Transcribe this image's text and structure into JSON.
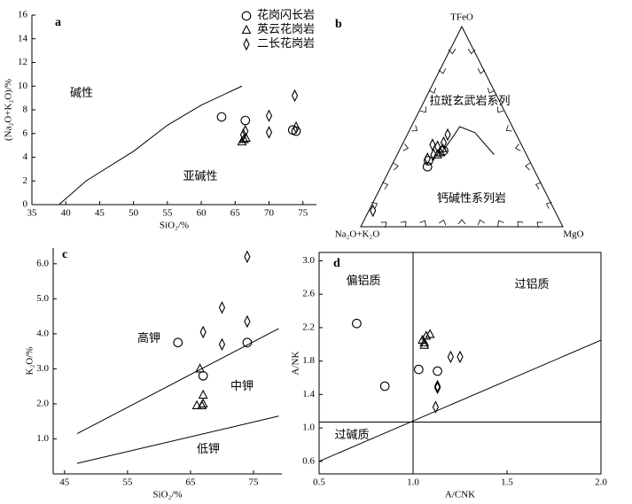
{
  "chart_data": [
    {
      "type": "scatter",
      "label": "a",
      "xlabel": "SiO₂/%",
      "ylabel": "(Na₂O+K₂O)/%",
      "xlim": [
        35,
        77
      ],
      "ylim": [
        0,
        16
      ],
      "xticks": [
        35,
        40,
        45,
        50,
        55,
        60,
        65,
        70,
        75
      ],
      "yticks": [
        0,
        2,
        4,
        6,
        8,
        10,
        12,
        14,
        16
      ],
      "legend": "upper right",
      "series": [
        {
          "name": "花岗闪长岩",
          "marker": "circle",
          "x": [
            63,
            66.5,
            73.5,
            74
          ],
          "y": [
            7.4,
            7.1,
            6.3,
            6.2
          ]
        },
        {
          "name": "英云花岗岩",
          "marker": "triangle",
          "x": [
            66,
            66.3,
            66.6
          ],
          "y": [
            5.3,
            5.5,
            5.6
          ]
        },
        {
          "name": "二长花岗岩",
          "marker": "diamond",
          "x": [
            66.5,
            66.2,
            70,
            70,
            73.8,
            74
          ],
          "y": [
            6.2,
            5.9,
            7.5,
            6.1,
            9.2,
            6.5
          ]
        }
      ],
      "lines": [
        {
          "x": [
            39,
            43,
            50,
            55,
            60,
            66
          ],
          "y": [
            0,
            2,
            4.5,
            6.7,
            8.4,
            10
          ]
        }
      ],
      "annotations": [
        "碱性",
        "亚碱性"
      ]
    },
    {
      "type": "ternary",
      "label": "b",
      "vertices": [
        "TFeO",
        "Na₂O+K₂O",
        "MgO"
      ],
      "series": [
        {
          "marker": "circle",
          "values": [
            [
              30,
              52,
              18
            ],
            [
              33,
              50,
              17
            ],
            [
              38,
              40,
              22
            ]
          ]
        },
        {
          "marker": "triangle",
          "values": [
            [
              36,
              44,
              20
            ],
            [
              37,
              42,
              21
            ],
            [
              39,
              40,
              21
            ]
          ]
        },
        {
          "marker": "diamond",
          "values": [
            [
              34,
              50,
              16
            ],
            [
              36,
              46,
              18
            ],
            [
              41,
              44,
              15
            ],
            [
              40,
              42,
              18
            ],
            [
              42,
              38,
              20
            ],
            [
              46,
              34,
              20
            ],
            [
              8,
              90,
              2
            ]
          ]
        }
      ],
      "lines": [
        {
          "values": [
            [
              35,
              44,
              21
            ],
            [
              44,
              33,
              23
            ],
            [
              50,
              26,
              24
            ],
            [
              47,
              20,
              33
            ],
            [
              36,
              16,
              48
            ]
          ]
        }
      ],
      "annotations": [
        "拉斑玄武岩系列",
        "钙碱性系列岩"
      ]
    },
    {
      "type": "scatter",
      "label": "c",
      "xlabel": "SiO₂/%",
      "ylabel": "K₂O/%",
      "xlim": [
        43.2,
        79.5
      ],
      "ylim": [
        0,
        6.45
      ],
      "xticks": [
        45,
        55,
        65,
        75
      ],
      "yticks": [
        {
          "value": 1,
          "label": "1.0"
        },
        {
          "value": 2,
          "label": "2.0"
        },
        {
          "value": 3,
          "label": "3.0"
        },
        {
          "value": 4,
          "label": "4.0"
        },
        {
          "value": 5,
          "label": "5.0"
        },
        {
          "value": 6,
          "label": "6.0"
        }
      ],
      "series": [
        {
          "marker": "circle",
          "x": [
            63,
            67,
            74
          ],
          "y": [
            3.75,
            2.8,
            3.75
          ]
        },
        {
          "marker": "triangle",
          "x": [
            66.5,
            66,
            67,
            67,
            66.8
          ],
          "y": [
            3.0,
            1.95,
            2.0,
            2.25,
            1.95
          ]
        },
        {
          "marker": "diamond",
          "x": [
            67,
            70,
            70,
            74,
            74
          ],
          "y": [
            4.05,
            4.75,
            3.7,
            6.2,
            4.35
          ]
        }
      ],
      "lines": [
        {
          "x": [
            47,
            79
          ],
          "y": [
            1.15,
            4.15
          ]
        },
        {
          "x": [
            47,
            79
          ],
          "y": [
            0.3,
            1.65
          ]
        }
      ],
      "annotations": [
        "高钾",
        "中钾",
        "低钾"
      ]
    },
    {
      "type": "scatter",
      "label": "d",
      "xlabel": "A/CNK",
      "ylabel": "A/NK",
      "xlim": [
        0.5,
        2.0
      ],
      "ylim": [
        0.45,
        3.1
      ],
      "xticks": [
        {
          "value": 0.5,
          "label": "0.5"
        },
        {
          "value": 1,
          "label": "1.0"
        },
        {
          "value": 1.5,
          "label": "1.5"
        },
        {
          "value": 2,
          "label": "2.0"
        }
      ],
      "yticks": [
        0.6,
        {
          "value": 1,
          "label": "1.0"
        },
        1.4,
        1.8,
        2.2,
        2.6,
        {
          "value": 3,
          "label": "3.0"
        }
      ],
      "series": [
        {
          "marker": "circle",
          "x": [
            0.7,
            0.85,
            1.03,
            1.13
          ],
          "y": [
            2.25,
            1.5,
            1.7,
            1.68
          ]
        },
        {
          "marker": "triangle",
          "x": [
            1.05,
            1.06,
            1.07,
            1.09,
            1.06
          ],
          "y": [
            2.05,
            2.02,
            2.1,
            2.12,
            1.99
          ]
        },
        {
          "marker": "diamond",
          "x": [
            1.13,
            1.13,
            1.2,
            1.25,
            1.12
          ],
          "y": [
            1.5,
            1.48,
            1.85,
            1.85,
            1.25
          ]
        }
      ],
      "lines": [
        {
          "x": [
            1.0,
            1.0
          ],
          "y": [
            0.45,
            3.1
          ]
        },
        {
          "x": [
            0.5,
            2.0
          ],
          "y": [
            1.07,
            1.07
          ]
        },
        {
          "x": [
            0.5,
            2.0
          ],
          "y": [
            0.6,
            2.05
          ]
        }
      ],
      "annotations": [
        "偏铝质",
        "过铝质",
        "过碱质"
      ]
    }
  ]
}
